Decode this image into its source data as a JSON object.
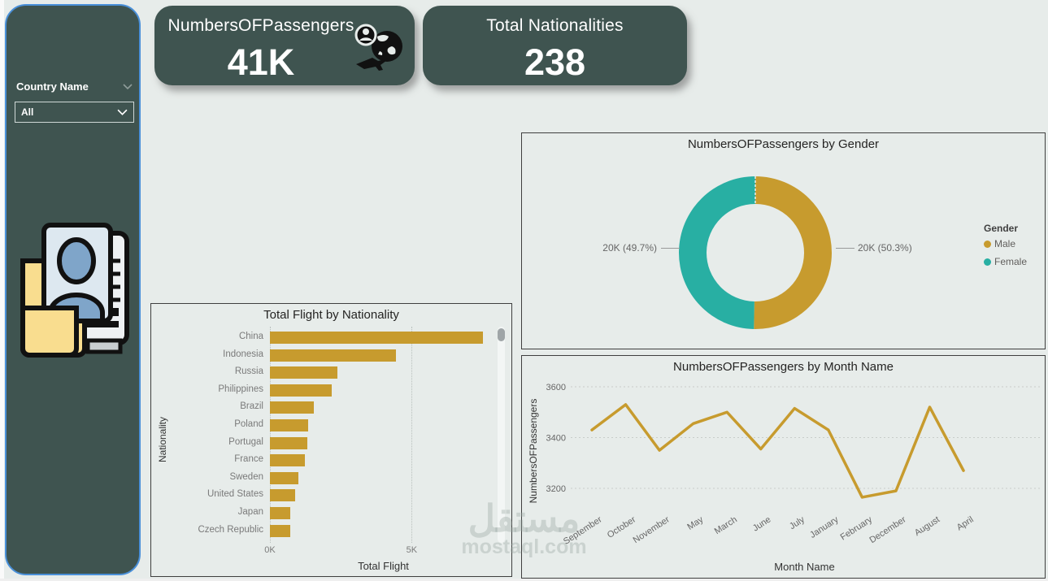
{
  "sidebar": {
    "filter_label": "Country Name",
    "dropdown_value": "All"
  },
  "kpi_cards": [
    {
      "title": "NumbersOFPassengers",
      "value": "41K",
      "icon": "traveler-globe-plane-icon"
    },
    {
      "title": "Total Nationalities",
      "value": "238"
    }
  ],
  "colors": {
    "accent_gold": "#C79B2E",
    "accent_teal": "#28AFA3",
    "card_bg": "#3F5450",
    "selection_blue": "#4A90D9",
    "canvas_bg": "#E7ECEA"
  },
  "watermark": {
    "arabic": "مستقل",
    "domain": "mostaql.com"
  },
  "chart_data": [
    {
      "type": "pie",
      "subtype": "donut",
      "title": "NumbersOFPassengers by Gender",
      "legend_title": "Gender",
      "legend_position": "right",
      "slices": [
        {
          "label": "Male",
          "value": 20000,
          "pct": 50.3,
          "display": "20K (50.3%)",
          "color": "#C79B2E"
        },
        {
          "label": "Female",
          "value": 20000,
          "pct": 49.7,
          "display": "20K (49.7%)",
          "color": "#28AFA3"
        }
      ]
    },
    {
      "type": "bar",
      "orientation": "horizontal",
      "title": "Total Flight by Nationality",
      "xlabel": "Total Flight",
      "ylabel": "Nationality",
      "categories": [
        "China",
        "Indonesia",
        "Russia",
        "Philippines",
        "Brazil",
        "Poland",
        "Portugal",
        "France",
        "Sweden",
        "United States",
        "Japan",
        "Czech Republic"
      ],
      "values": [
        7500,
        4450,
        2390,
        2190,
        1540,
        1360,
        1330,
        1220,
        990,
        900,
        730,
        710
      ],
      "x_ticks": [
        {
          "label": "0K",
          "value": 0
        },
        {
          "label": "5K",
          "value": 5000
        }
      ],
      "xlim": [
        0,
        8000
      ],
      "bar_color": "#C79B2E",
      "grid": true,
      "scrollbar": true
    },
    {
      "type": "line",
      "title": "NumbersOFPassengers by Month Name",
      "xlabel": "Month Name",
      "ylabel": "NumbersOFPassengers",
      "categories": [
        "September",
        "October",
        "November",
        "May",
        "March",
        "June",
        "July",
        "January",
        "February",
        "December",
        "August",
        "April"
      ],
      "values": [
        3430,
        3530,
        3350,
        3455,
        3500,
        3355,
        3515,
        3430,
        3165,
        3190,
        3520,
        3270
      ],
      "y_ticks": [
        3600,
        3400,
        3200
      ],
      "ylim": [
        3100,
        3660
      ],
      "line_color": "#C79B2E",
      "grid": true
    }
  ]
}
